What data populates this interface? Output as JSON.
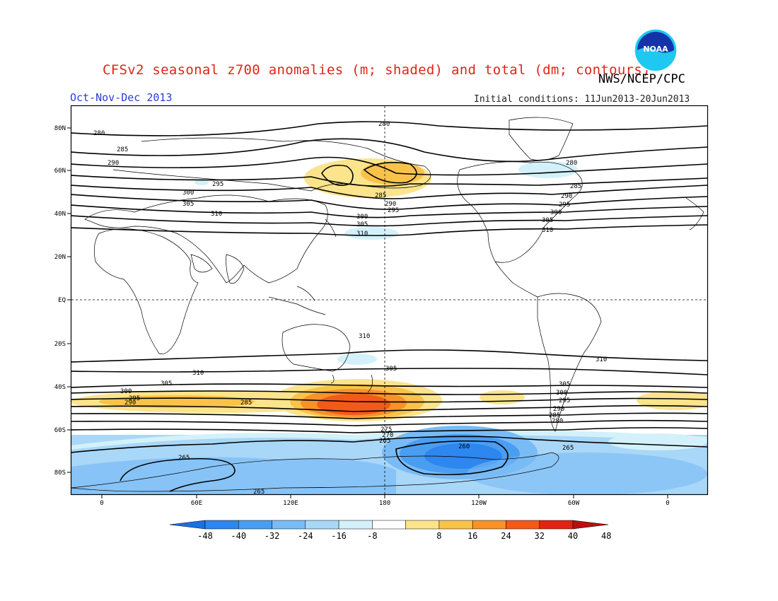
{
  "header": {
    "title": "CFSv2 seasonal z700 anomalies (m; shaded) and total (dm; contours)",
    "agency": "NWS/NCEP/CPC",
    "season": "Oct-Nov-Dec 2013",
    "initial_conditions": "Initial conditions: 11Jun2013-20Jun2013",
    "logo_text": "NOAA"
  },
  "map": {
    "lat_labels": [
      "80N",
      "60N",
      "40N",
      "20N",
      "EQ",
      "20S",
      "40S",
      "60S",
      "80S"
    ],
    "lon_labels": [
      "0",
      "60E",
      "120E",
      "180",
      "120W",
      "60W",
      "0"
    ],
    "contour_levels_dm": [
      260,
      265,
      270,
      275,
      280,
      285,
      290,
      295,
      300,
      305,
      310
    ],
    "contour_labels": [
      "280",
      "285",
      "290",
      "295",
      "300",
      "305",
      "310",
      "280",
      "285",
      "290",
      "295",
      "300",
      "305",
      "310",
      "280",
      "285",
      "290",
      "295",
      "300",
      "305",
      "310",
      "310",
      "310",
      "305",
      "310",
      "305",
      "300",
      "295",
      "290",
      "285",
      "305",
      "300",
      "295",
      "290",
      "285",
      "280",
      "275",
      "270",
      "265",
      "260",
      "265",
      "265",
      "265"
    ]
  },
  "colorbar": {
    "ticks": [
      "-48",
      "-40",
      "-32",
      "-24",
      "-16",
      "-8",
      "8",
      "16",
      "24",
      "32",
      "40",
      "48"
    ],
    "colors": [
      "#1e6fe0",
      "#2e86ef",
      "#4a9ef2",
      "#79bbf5",
      "#a9d7f8",
      "#d3f1fa",
      "#ffffff",
      "#fbe48c",
      "#f9c34a",
      "#f7922b",
      "#f25a1a",
      "#e02414",
      "#b8100f"
    ]
  }
}
